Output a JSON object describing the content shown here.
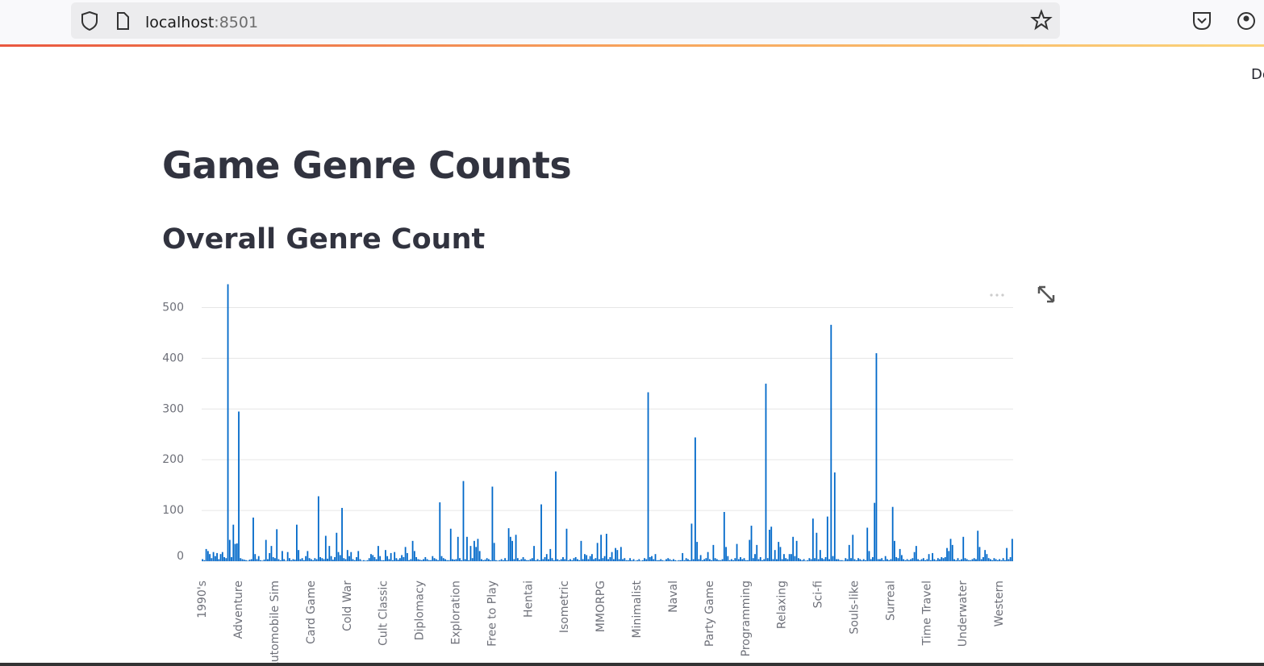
{
  "browser": {
    "host": "localhost",
    "port": ":8501"
  },
  "toolbar": {
    "deploy": "De"
  },
  "header": {
    "title": "Game Genre Counts",
    "subheader": "Overall Genre Count"
  },
  "chart_data": {
    "type": "bar",
    "color": "#0068c9",
    "grid": true,
    "ylim": [
      0,
      550
    ],
    "yticks": [
      0,
      100,
      200,
      300,
      400,
      500
    ],
    "categories": [
      "1990's",
      null,
      null,
      null,
      null,
      null,
      null,
      null,
      null,
      null,
      null,
      null,
      null,
      null,
      null,
      null,
      null,
      null,
      null,
      null,
      "Adventure",
      null,
      null,
      null,
      null,
      null,
      null,
      null,
      null,
      null,
      null,
      null,
      null,
      null,
      null,
      null,
      null,
      null,
      null,
      null,
      "Automobile Sim",
      null,
      null,
      null,
      null,
      null,
      null,
      null,
      null,
      null,
      null,
      null,
      null,
      null,
      null,
      null,
      null,
      null,
      null,
      null,
      "Card Game",
      null,
      null,
      null,
      null,
      null,
      null,
      null,
      null,
      null,
      null,
      null,
      null,
      null,
      null,
      null,
      null,
      null,
      null,
      null,
      "Cold War",
      null,
      null,
      null,
      null,
      null,
      null,
      null,
      null,
      null,
      null,
      null,
      null,
      null,
      null,
      null,
      null,
      null,
      null,
      null,
      "Cult Classic",
      null,
      null,
      null,
      null,
      null,
      null,
      null,
      null,
      null,
      null,
      null,
      null,
      null,
      null,
      null,
      null,
      null,
      null,
      null,
      "Diplomacy",
      null,
      null,
      null,
      null,
      null,
      null,
      null,
      null,
      null,
      null,
      null,
      null,
      null,
      null,
      null,
      null,
      null,
      null,
      null,
      "Exploration",
      null,
      null,
      null,
      null,
      null,
      null,
      null,
      null,
      null,
      null,
      null,
      null,
      null,
      null,
      null,
      null,
      null,
      null,
      null,
      "Free to Play",
      null,
      null,
      null,
      null,
      null,
      null,
      null,
      null,
      null,
      null,
      null,
      null,
      null,
      null,
      null,
      null,
      null,
      null,
      null,
      "Hentai",
      null,
      null,
      null,
      null,
      null,
      null,
      null,
      null,
      null,
      null,
      null,
      null,
      null,
      null,
      null,
      null,
      null,
      null,
      null,
      "Isometric",
      null,
      null,
      null,
      null,
      null,
      null,
      null,
      null,
      null,
      null,
      null,
      null,
      null,
      null,
      null,
      null,
      null,
      null,
      null,
      "MMORPG",
      null,
      null,
      null,
      null,
      null,
      null,
      null,
      null,
      null,
      null,
      null,
      null,
      null,
      null,
      null,
      null,
      null,
      null,
      null,
      "Minimalist",
      null,
      null,
      null,
      null,
      null,
      null,
      null,
      null,
      null,
      null,
      null,
      null,
      null,
      null,
      null,
      null,
      null,
      null,
      null,
      "Naval",
      null,
      null,
      null,
      null,
      null,
      null,
      null,
      null,
      null,
      null,
      null,
      null,
      null,
      null,
      null,
      null,
      null,
      null,
      null,
      "Party Game",
      null,
      null,
      null,
      null,
      null,
      null,
      null,
      null,
      null,
      null,
      null,
      null,
      null,
      null,
      null,
      null,
      null,
      null,
      null,
      "Programming",
      null,
      null,
      null,
      null,
      null,
      null,
      null,
      null,
      null,
      null,
      null,
      null,
      null,
      null,
      null,
      null,
      null,
      null,
      null,
      "Relaxing",
      null,
      null,
      null,
      null,
      null,
      null,
      null,
      null,
      null,
      null,
      null,
      null,
      null,
      null,
      null,
      null,
      null,
      null,
      null,
      "Sci-fi",
      null,
      null,
      null,
      null,
      null,
      null,
      null,
      null,
      null,
      null,
      null,
      null,
      null,
      null,
      null,
      null,
      null,
      null,
      null,
      "Souls-like",
      null,
      null,
      null,
      null,
      null,
      null,
      null,
      null,
      null,
      null,
      null,
      null,
      null,
      null,
      null,
      null,
      null,
      null,
      null,
      "Surreal",
      null,
      null,
      null,
      null,
      null,
      null,
      null,
      null,
      null,
      null,
      null,
      null,
      null,
      null,
      null,
      null,
      null,
      null,
      null,
      "Time Travel",
      null,
      null,
      null,
      null,
      null,
      null,
      null,
      null,
      null,
      null,
      null,
      null,
      null,
      null,
      null,
      null,
      null,
      null,
      null,
      "Underwater",
      null,
      null,
      null,
      null,
      null,
      null,
      null,
      null,
      null,
      null,
      null,
      null,
      null,
      null,
      null,
      null,
      null,
      null,
      null,
      "Western",
      null,
      null,
      null,
      null,
      null,
      null,
      null
    ],
    "values": [
      4,
      2,
      24,
      20,
      14,
      6,
      18,
      10,
      16,
      4,
      14,
      18,
      8,
      6,
      546,
      42,
      8,
      72,
      34,
      35,
      295,
      6,
      4,
      3,
      2,
      1,
      3,
      4,
      86,
      14,
      4,
      10,
      2,
      1,
      3,
      42,
      4,
      16,
      30,
      8,
      6,
      63,
      4,
      2,
      20,
      4,
      1,
      18,
      6,
      2,
      4,
      3,
      72,
      22,
      4,
      6,
      2,
      10,
      20,
      6,
      4,
      2,
      6,
      4,
      128,
      8,
      6,
      4,
      50,
      5,
      30,
      10,
      3,
      8,
      56,
      18,
      12,
      105,
      6,
      4,
      22,
      10,
      18,
      4,
      2,
      8,
      20,
      4,
      1,
      2,
      1,
      2,
      6,
      14,
      12,
      8,
      4,
      30,
      10,
      2,
      2,
      22,
      10,
      4,
      16,
      2,
      18,
      6,
      3,
      6,
      12,
      8,
      28,
      16,
      2,
      4,
      40,
      20,
      8,
      4,
      3,
      2,
      4,
      8,
      4,
      2,
      2,
      10,
      6,
      4,
      2,
      116,
      10,
      6,
      4,
      2,
      2,
      64,
      4,
      3,
      4,
      48,
      6,
      2,
      158,
      4,
      48,
      2,
      30,
      6,
      40,
      28,
      44,
      20,
      4,
      2,
      3,
      6,
      4,
      2,
      147,
      36,
      2,
      1,
      2,
      4,
      2,
      6,
      2,
      65,
      48,
      40,
      4,
      52,
      6,
      2,
      4,
      8,
      4,
      2,
      2,
      4,
      6,
      30,
      2,
      4,
      2,
      112,
      4,
      8,
      14,
      4,
      24,
      6,
      2,
      177,
      4,
      2,
      4,
      8,
      4,
      64,
      2,
      4,
      2,
      6,
      8,
      4,
      2,
      40,
      4,
      14,
      12,
      4,
      10,
      14,
      4,
      6,
      36,
      4,
      52,
      6,
      10,
      54,
      4,
      8,
      18,
      4,
      26,
      22,
      4,
      28,
      4,
      6,
      2,
      2,
      6,
      2,
      4,
      1,
      2,
      4,
      1,
      2,
      6,
      4,
      333,
      8,
      10,
      4,
      14,
      2,
      2,
      4,
      2,
      1,
      4,
      6,
      4,
      2,
      4,
      2,
      1,
      2,
      2,
      16,
      2,
      6,
      4,
      2,
      74,
      4,
      244,
      38,
      4,
      12,
      2,
      4,
      6,
      18,
      4,
      2,
      32,
      6,
      4,
      2,
      2,
      4,
      97,
      28,
      10,
      2,
      4,
      2,
      6,
      34,
      4,
      8,
      4,
      6,
      2,
      2,
      42,
      70,
      6,
      14,
      32,
      4,
      8,
      2,
      4,
      350,
      6,
      62,
      68,
      4,
      22,
      4,
      38,
      28,
      4,
      14,
      6,
      4,
      14,
      14,
      48,
      10,
      40,
      6,
      4,
      2,
      4,
      1,
      2,
      6,
      4,
      84,
      6,
      56,
      4,
      22,
      6,
      4,
      8,
      88,
      4,
      466,
      10,
      175,
      4,
      4,
      2,
      2,
      1,
      6,
      4,
      32,
      6,
      52,
      4,
      2,
      6,
      4,
      2,
      4,
      2,
      66,
      20,
      4,
      8,
      115,
      410,
      4,
      4,
      6,
      2,
      10,
      4,
      2,
      4,
      107,
      40,
      8,
      6,
      24,
      12,
      4,
      2,
      4,
      2,
      4,
      6,
      18,
      30,
      4,
      2,
      4,
      6,
      2,
      4,
      14,
      2,
      16,
      4,
      2,
      6,
      4,
      8,
      6,
      8,
      26,
      20,
      44,
      32,
      4,
      2,
      6,
      2,
      4,
      48,
      6,
      4,
      2,
      2,
      4,
      6,
      4,
      60,
      28,
      4,
      8,
      22,
      14,
      6,
      4,
      2,
      6,
      4,
      2,
      4,
      2,
      6,
      2,
      26,
      4,
      8,
      44
    ]
  }
}
